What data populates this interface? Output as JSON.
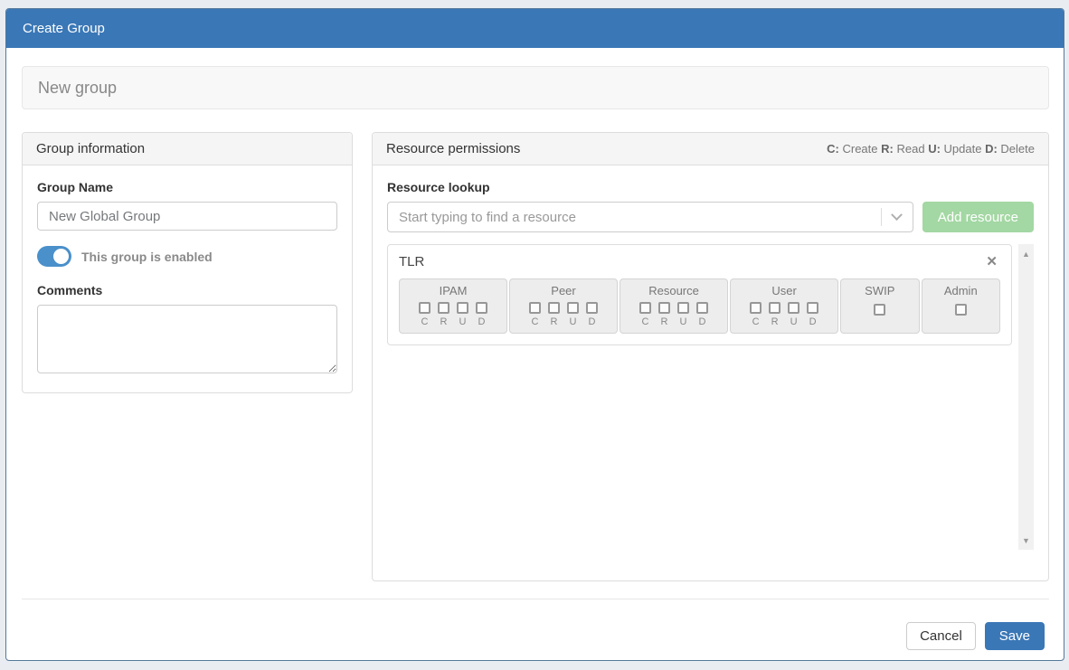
{
  "modal": {
    "title": "Create Group"
  },
  "subtitle": "New group",
  "group_info": {
    "header": "Group information",
    "group_name_label": "Group Name",
    "group_name_value": "New Global Group",
    "enabled": true,
    "enabled_toggle_label": "This group is enabled",
    "comments_label": "Comments",
    "comments_value": ""
  },
  "resource_permissions": {
    "header": "Resource permissions",
    "legend": [
      {
        "key": "C:",
        "label": "Create"
      },
      {
        "key": "R:",
        "label": "Read"
      },
      {
        "key": "U:",
        "label": "Update"
      },
      {
        "key": "D:",
        "label": "Delete"
      }
    ],
    "lookup_label": "Resource lookup",
    "lookup_placeholder": "Start typing to find a resource",
    "add_button_label": "Add resource",
    "resources": [
      {
        "name": "TLR",
        "groups": [
          {
            "label": "IPAM",
            "perms": [
              "C",
              "R",
              "U",
              "D"
            ],
            "checked": [
              false,
              false,
              false,
              false
            ]
          },
          {
            "label": "Peer",
            "perms": [
              "C",
              "R",
              "U",
              "D"
            ],
            "checked": [
              false,
              false,
              false,
              false
            ]
          },
          {
            "label": "Resource",
            "perms": [
              "C",
              "R",
              "U",
              "D"
            ],
            "checked": [
              false,
              false,
              false,
              false
            ]
          },
          {
            "label": "User",
            "perms": [
              "C",
              "R",
              "U",
              "D"
            ],
            "checked": [
              false,
              false,
              false,
              false
            ]
          },
          {
            "label": "SWIP",
            "perms": [],
            "checked": [
              false
            ]
          },
          {
            "label": "Admin",
            "perms": [],
            "checked": [
              false
            ]
          }
        ]
      }
    ]
  },
  "icons": {
    "close": "✕",
    "scroll_up": "▲",
    "scroll_down": "▼"
  },
  "footer": {
    "cancel_label": "Cancel",
    "save_label": "Save"
  },
  "colors": {
    "header_blue": "#3a77b6",
    "toggle_blue": "#4a90ca",
    "add_button_green": "#a3d7a3",
    "save_blue": "#3a77b6",
    "page_background": "#e9edf1"
  }
}
